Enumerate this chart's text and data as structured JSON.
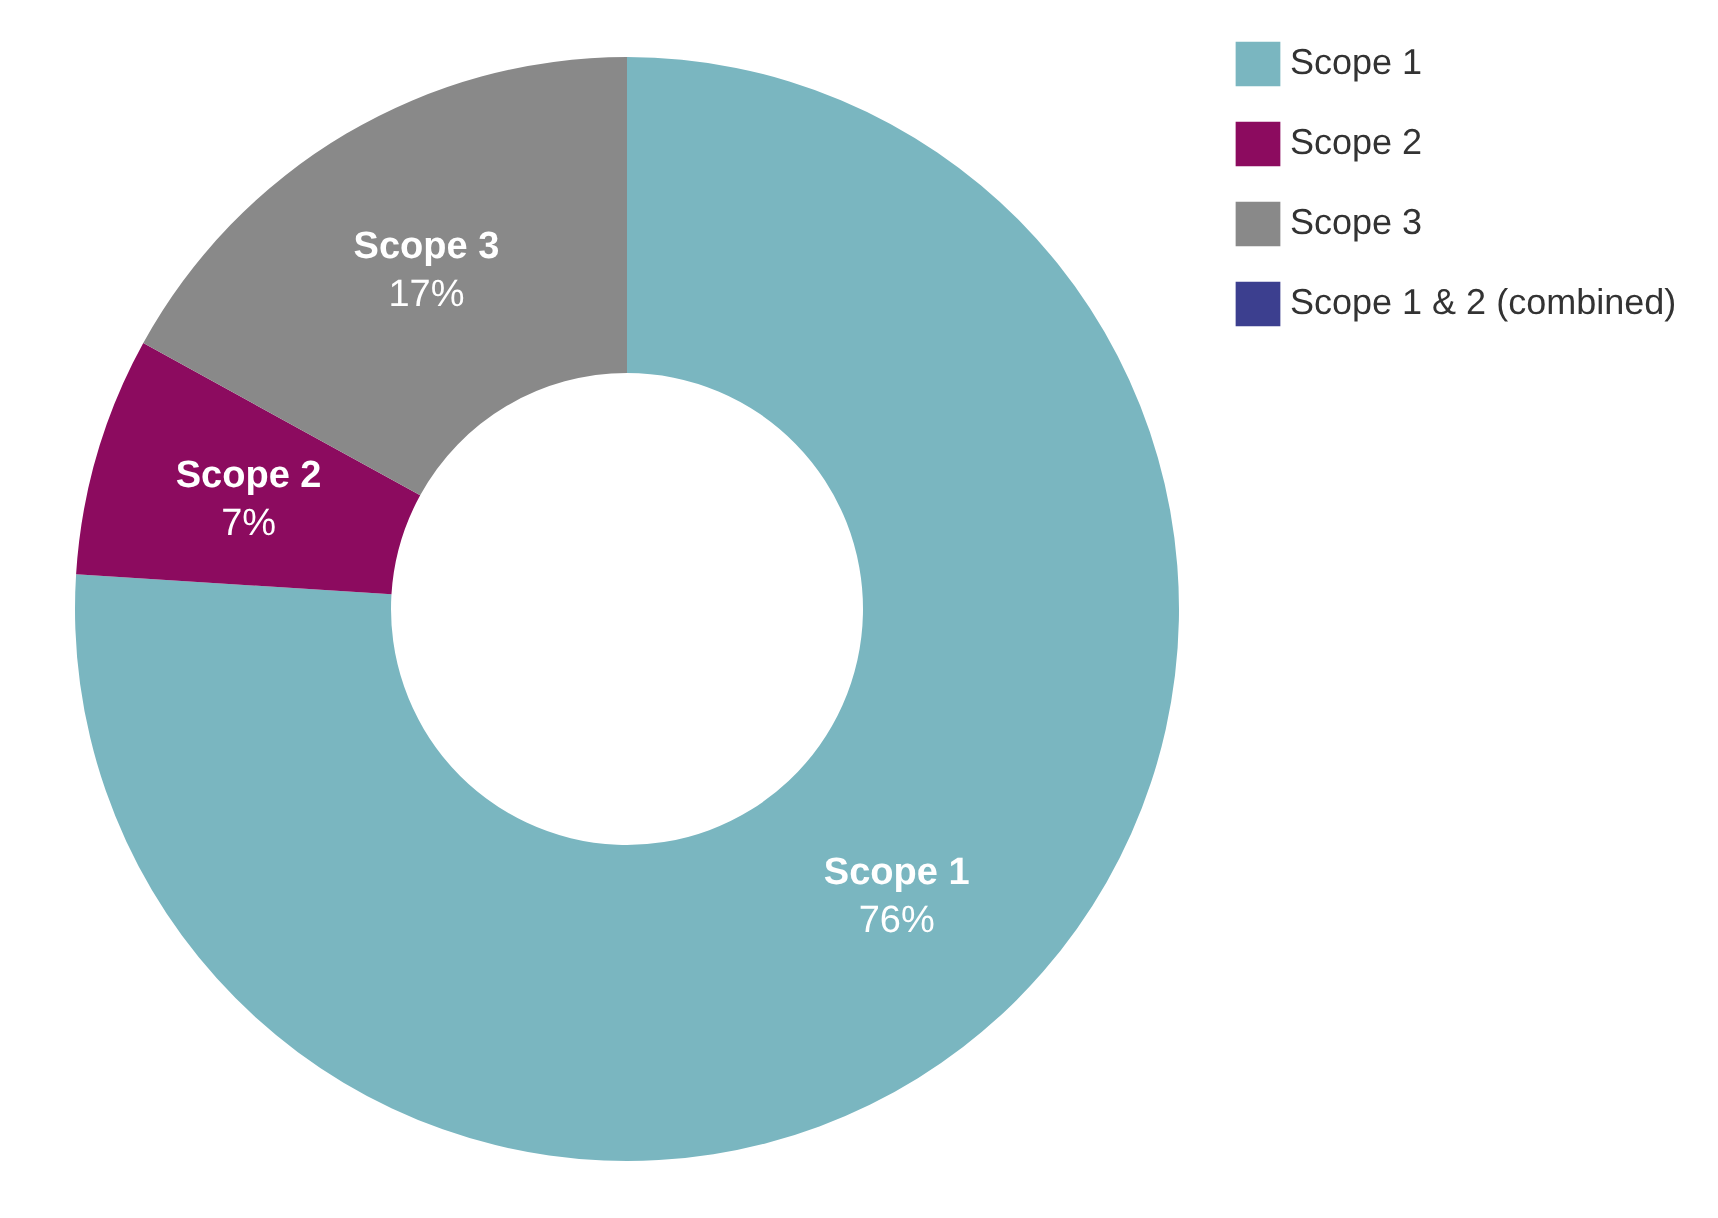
{
  "chart_data": {
    "type": "donut",
    "categories": [
      "Scope 1",
      "Scope 2",
      "Scope 3",
      "Scope 1 & 2 (combined)"
    ],
    "values": [
      76,
      7,
      17,
      0
    ],
    "colors": [
      "#7ab6c0",
      "#8c0b5f",
      "#898989",
      "#3c3f8f"
    ],
    "value_labels": [
      "76%",
      "7%",
      "17%",
      null
    ],
    "legend": "right"
  }
}
